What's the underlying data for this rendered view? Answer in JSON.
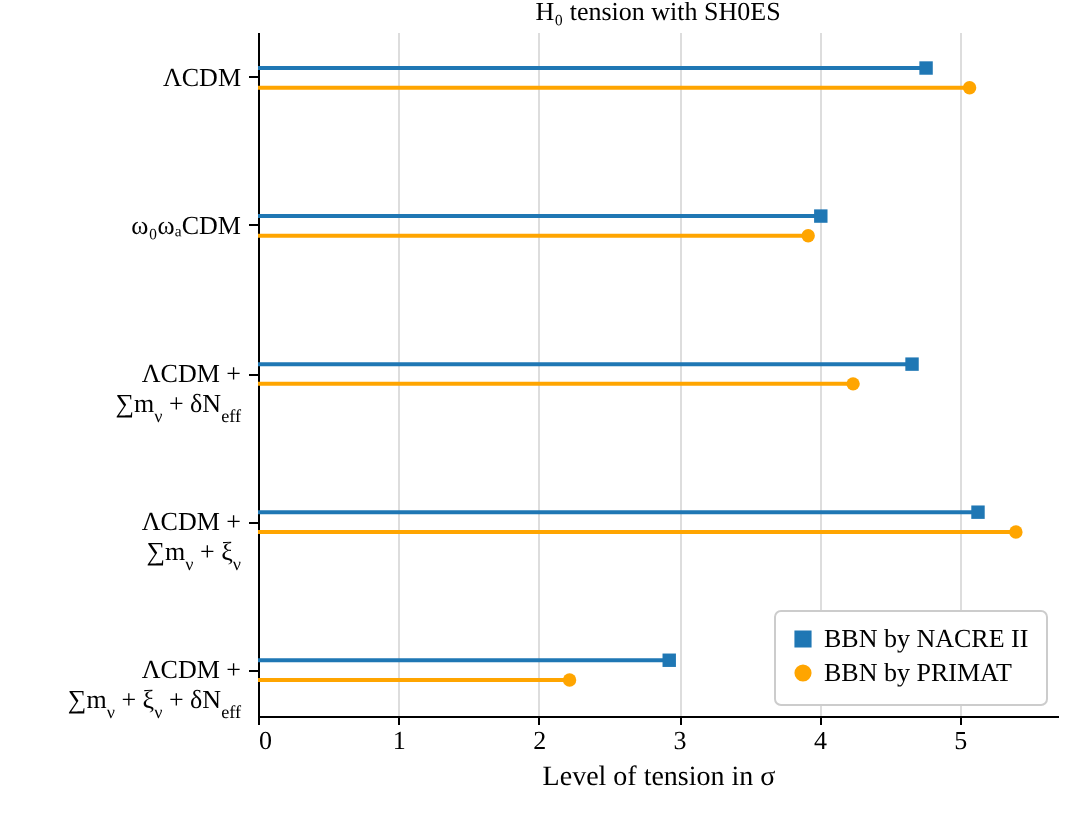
{
  "chart_data": {
    "type": "lollipop",
    "orientation": "horizontal",
    "title": "H₀ tension with SH0ES",
    "xlabel": "Level of tension in σ",
    "categories": [
      "ΛCDM",
      "ω₀ωₐCDM",
      "ΛCDM +\n∑m$_{ν}$ + δN$_{eff}$",
      "ΛCDM +\n∑m$_{ν}$ + ξ$_{ν}$",
      "ΛCDM +\n∑m$_{ν}$ + ξ$_{ν}$ + δN$_{eff}$"
    ],
    "series": [
      {
        "name": "BBN by NACRE II",
        "color": "#1f77b4",
        "marker": "square",
        "values": [
          4.76,
          4.01,
          4.66,
          5.13,
          2.93
        ]
      },
      {
        "name": "BBN by PRIMAT",
        "color": "#ffa500",
        "marker": "circle",
        "values": [
          5.07,
          3.92,
          4.24,
          5.4,
          2.22
        ]
      }
    ],
    "xlim": [
      0,
      5.7
    ],
    "xticks": [
      0,
      1,
      2,
      3,
      4,
      5
    ],
    "grid": "x",
    "legend": "bottom right"
  }
}
